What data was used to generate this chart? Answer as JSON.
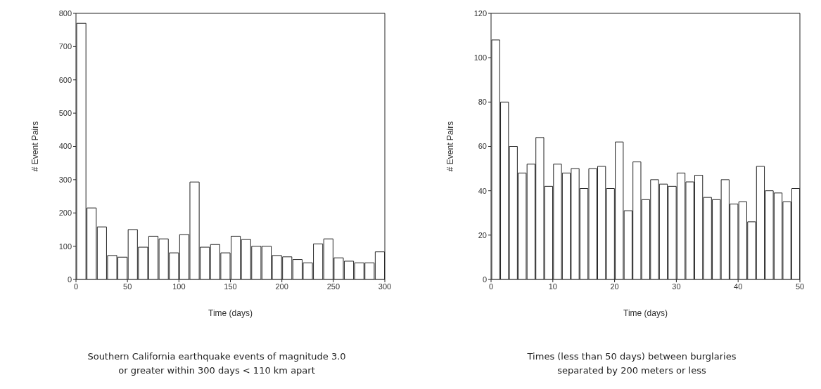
{
  "chart_data": [
    {
      "type": "histogram",
      "xlabel": "Time (days)",
      "ylabel": "# Event Pairs",
      "bins": [
        0,
        10,
        20,
        30,
        40,
        50,
        60,
        70,
        80,
        90,
        100,
        110,
        120,
        130,
        140,
        150,
        160,
        170,
        180,
        190,
        200,
        210,
        220,
        230,
        240,
        250,
        260,
        270,
        280,
        290,
        300
      ],
      "values": [
        770,
        215,
        158,
        72,
        67,
        150,
        97,
        130,
        122,
        80,
        135,
        293,
        97,
        105,
        80,
        130,
        120,
        100,
        100,
        72,
        68,
        60,
        50,
        107,
        122,
        65,
        55,
        50,
        50,
        83
      ],
      "color": "#ffffff",
      "xlim": [
        0,
        300
      ],
      "xticks": [
        0,
        50,
        100,
        150,
        200,
        250,
        300
      ],
      "ylim": [
        0,
        800
      ],
      "yticks": [
        0,
        100,
        200,
        300,
        400,
        500,
        600,
        700,
        800
      ],
      "grid": false,
      "annotations": [
        "Southern California earthquake events of magnitude 3.0\nor greater within 300 days < 110 km apart"
      ]
    },
    {
      "type": "histogram",
      "xlabel": "Time (days)",
      "ylabel": "# Event Pairs",
      "bins": [
        0,
        1.4286,
        2.8571,
        4.2857,
        5.7143,
        7.1429,
        8.5714,
        10,
        11.4286,
        12.8571,
        14.2857,
        15.7143,
        17.1429,
        18.5714,
        20,
        21.4286,
        22.8571,
        24.2857,
        25.7143,
        27.1429,
        28.5714,
        30,
        31.4286,
        32.8571,
        34.2857,
        35.7143,
        37.1429,
        38.5714,
        40,
        41.4286,
        42.8571,
        44.2857,
        45.7143,
        47.1429,
        48.5714,
        50
      ],
      "values": [
        108,
        80,
        60,
        48,
        52,
        64,
        42,
        52,
        48,
        50,
        41,
        50,
        51,
        41,
        62,
        31,
        53,
        36,
        45,
        43,
        42,
        48,
        44,
        47,
        37,
        36,
        45,
        34,
        35,
        26,
        51,
        40,
        39,
        35,
        41
      ],
      "color": "#ffffff",
      "xlim": [
        0,
        50
      ],
      "xticks": [
        0,
        10,
        20,
        30,
        40,
        50
      ],
      "ylim": [
        0,
        120
      ],
      "yticks": [
        0,
        20,
        40,
        60,
        80,
        100,
        120
      ],
      "grid": false,
      "annotations": [
        "Times (less than 50 days) between burglaries\nseparated by 200 meters or less"
      ]
    }
  ]
}
